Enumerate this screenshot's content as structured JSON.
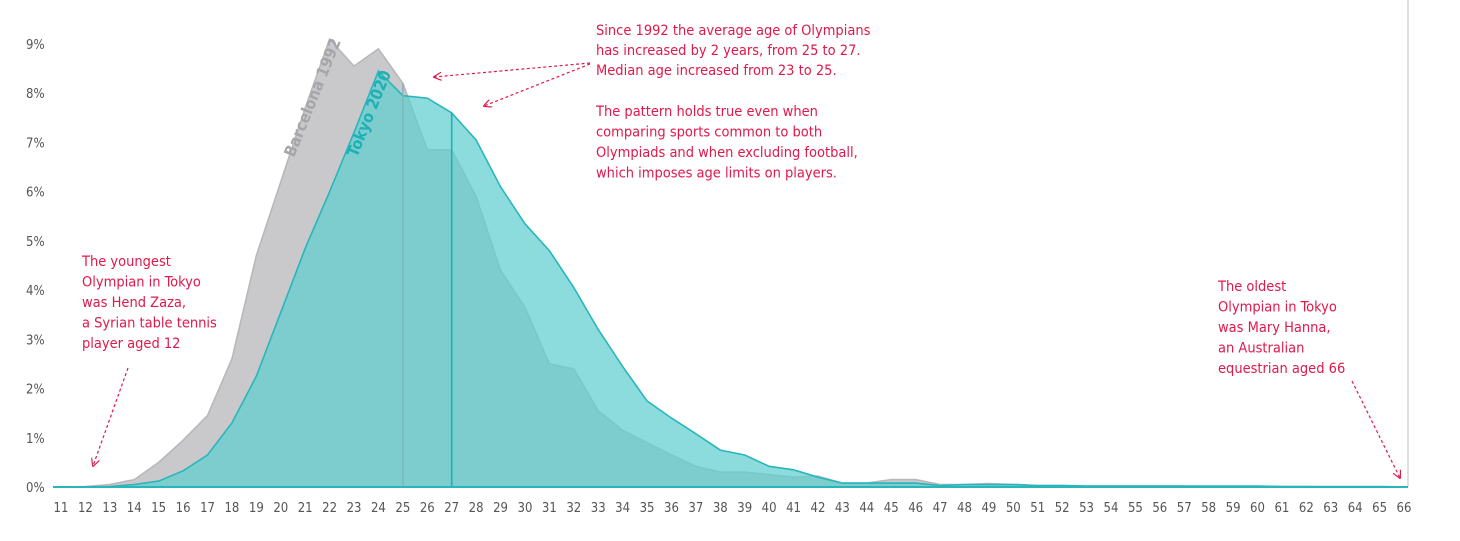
{
  "chart_data": {
    "type": "area",
    "x": [
      11,
      12,
      13,
      14,
      15,
      16,
      17,
      18,
      19,
      20,
      21,
      22,
      23,
      24,
      25,
      26,
      27,
      28,
      29,
      30,
      31,
      32,
      33,
      34,
      35,
      36,
      37,
      38,
      39,
      40,
      41,
      42,
      43,
      44,
      45,
      46,
      47,
      48,
      49,
      50,
      51,
      52,
      53,
      54,
      55,
      56,
      57,
      58,
      59,
      60,
      61,
      62,
      63,
      64,
      65,
      66
    ],
    "xlim": [
      11,
      66
    ],
    "ylim": [
      0,
      9
    ],
    "y_ticks": [
      0,
      1,
      2,
      3,
      4,
      5,
      6,
      7,
      8,
      9
    ],
    "y_tick_format": "%",
    "grid": false,
    "series": [
      {
        "name": "Barcelona 1992",
        "color": "#c9c9cc",
        "edge_color": "#b8b8bc",
        "values": [
          0,
          0.01,
          0.05,
          0.15,
          0.5,
          0.95,
          1.45,
          2.6,
          4.7,
          6.2,
          7.7,
          9.1,
          8.55,
          8.9,
          8.2,
          6.85,
          6.85,
          5.9,
          4.4,
          3.65,
          2.5,
          2.4,
          1.55,
          1.15,
          0.9,
          0.65,
          0.42,
          0.3,
          0.3,
          0.25,
          0.2,
          0.22,
          0.08,
          0.08,
          0.15,
          0.15,
          0.05,
          0.05,
          0.07,
          0.05,
          0.03,
          0.03,
          0.02,
          0.02,
          0.02,
          0.02,
          0.02,
          0.01,
          0.01,
          0.01,
          0.01,
          0.01,
          0,
          0,
          0,
          0
        ]
      },
      {
        "name": "Tokyo 2020",
        "color": "#5fcfd0",
        "edge_color": "#29b6bb",
        "values": [
          0,
          0.003,
          0.01,
          0.05,
          0.12,
          0.33,
          0.65,
          1.3,
          2.25,
          3.55,
          4.85,
          6.0,
          7.2,
          8.45,
          7.95,
          7.9,
          7.6,
          7.05,
          6.1,
          5.35,
          4.8,
          4.05,
          3.2,
          2.45,
          1.75,
          1.4,
          1.08,
          0.75,
          0.65,
          0.42,
          0.35,
          0.2,
          0.08,
          0.08,
          0.08,
          0.08,
          0.03,
          0.05,
          0.05,
          0.05,
          0.03,
          0.03,
          0.02,
          0.02,
          0.02,
          0.02,
          0.02,
          0.02,
          0.02,
          0.02,
          0.01,
          0.01,
          0.01,
          0.01,
          0.01,
          0.003
        ]
      }
    ],
    "averages": {
      "Barcelona 1992": 25,
      "Tokyo 2020": 27
    },
    "series_labels": [
      "Barcelona 1992",
      "Tokyo 2020"
    ],
    "annotations": {
      "average_note": [
        "Since 1992 the average age of Olympians",
        "has increased by 2 years, from 25 to 27.",
        "Median age increased from 23 to 25."
      ],
      "pattern_note": [
        "The pattern holds true even when",
        "comparing sports common to both",
        "Olympiads and when excluding football,",
        "which imposes age limits on players."
      ],
      "youngest_note": [
        "The youngest",
        "Olympian in Tokyo",
        "was Hend Zaza,",
        "a Syrian table tennis",
        "player aged 12"
      ],
      "oldest_note": [
        "The oldest",
        "Olympian in Tokyo",
        "was Mary Hanna,",
        "an Australian",
        "equestrian aged 66"
      ],
      "color": "#e0194b"
    }
  }
}
